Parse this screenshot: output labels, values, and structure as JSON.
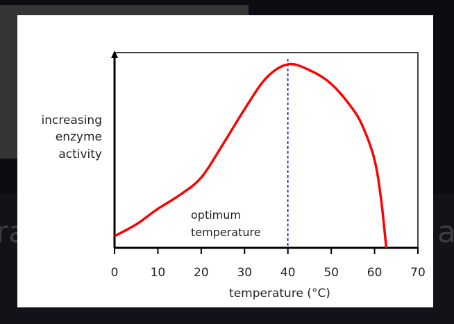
{
  "background": {
    "left_fragment": "ra",
    "right_fragment": "a"
  },
  "chart_data": {
    "type": "line",
    "title": "",
    "xlabel": "temperature (°C)",
    "xlabel_parts": {
      "main": "temperature (",
      "sup": "o",
      "end": "C)"
    },
    "ylabel_lines": [
      "increasing",
      "enzyme",
      "activity"
    ],
    "xlim": [
      0,
      70
    ],
    "ylim": [
      0,
      1
    ],
    "xticks": [
      0,
      10,
      20,
      30,
      40,
      50,
      60,
      70
    ],
    "grid": false,
    "series": [
      {
        "color": "#ff0000",
        "x": [
          0,
          5,
          10,
          15,
          20,
          25,
          30,
          35,
          40,
          45,
          50,
          55,
          57.5,
          60,
          61.5,
          62.7
        ],
        "y": [
          0.06,
          0.12,
          0.2,
          0.27,
          0.36,
          0.53,
          0.71,
          0.87,
          0.94,
          0.91,
          0.84,
          0.71,
          0.61,
          0.45,
          0.25,
          0
        ]
      }
    ],
    "optimum": {
      "x": 40,
      "color": "#0000ff",
      "label_lines": [
        "optimum",
        "temperature"
      ]
    }
  }
}
